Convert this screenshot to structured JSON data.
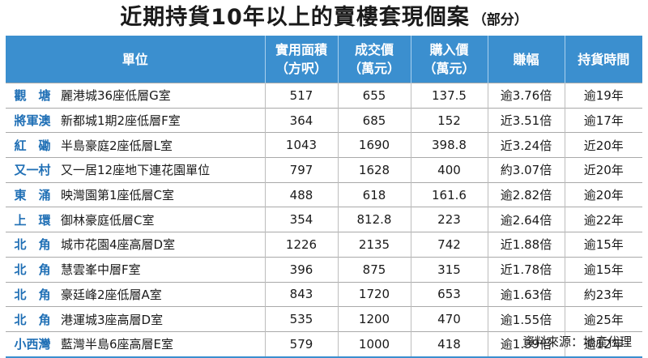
{
  "title": {
    "main": "近期持貨10年以上的賣樓套現個案",
    "sub": "（部分）"
  },
  "header": {
    "unit": "單位",
    "area": [
      "實用面積",
      "（方呎）"
    ],
    "deal": [
      "成交價",
      "（萬元）"
    ],
    "buy": [
      "購入價",
      "（萬元）"
    ],
    "gain": "賺幅",
    "hold": "持貨時間"
  },
  "rows": [
    {
      "district": "觀　塘",
      "estate": "麗港城36座低層G室",
      "area": "517",
      "deal": "655",
      "buy": "137.5",
      "gain": "逾3.76倍",
      "hold": "逾19年"
    },
    {
      "district": "將軍澳",
      "estate": "新都城1期2座低層F室",
      "area": "364",
      "deal": "685",
      "buy": "152",
      "gain": "近3.51倍",
      "hold": "逾17年"
    },
    {
      "district": "紅　磡",
      "estate": "半島豪庭2座低層L室",
      "area": "1043",
      "deal": "1690",
      "buy": "398.8",
      "gain": "近3.24倍",
      "hold": "近20年"
    },
    {
      "district": "又一村",
      "estate": "又一居12座地下連花園單位",
      "area": "797",
      "deal": "1628",
      "buy": "400",
      "gain": "約3.07倍",
      "hold": "近20年"
    },
    {
      "district": "東　涌",
      "estate": "映灣園第1座低層C室",
      "area": "488",
      "deal": "618",
      "buy": "161.6",
      "gain": "逾2.82倍",
      "hold": "逾20年"
    },
    {
      "district": "上　環",
      "estate": "御林豪庭低層C室",
      "area": "354",
      "deal": "812.8",
      "buy": "223",
      "gain": "逾2.64倍",
      "hold": "逾22年"
    },
    {
      "district": "北　角",
      "estate": "城市花園4座高層D室",
      "area": "1226",
      "deal": "2135",
      "buy": "742",
      "gain": "近1.88倍",
      "hold": "逾15年"
    },
    {
      "district": "北　角",
      "estate": "慧雲峯中層F室",
      "area": "396",
      "deal": "875",
      "buy": "315",
      "gain": "近1.78倍",
      "hold": "逾15年"
    },
    {
      "district": "北　角",
      "estate": "豪廷峰2座低層A室",
      "area": "843",
      "deal": "1720",
      "buy": "653",
      "gain": "逾1.63倍",
      "hold": "約23年"
    },
    {
      "district": "北　角",
      "estate": "港運城3座高層D室",
      "area": "535",
      "deal": "1200",
      "buy": "470",
      "gain": "逾1.55倍",
      "hold": "逾25年"
    },
    {
      "district": "小西灣",
      "estate": "藍灣半島6座高層E室",
      "area": "579",
      "deal": "1000",
      "buy": "418",
      "gain": "逾1.39倍",
      "hold": "逾12年"
    }
  ],
  "source": "資料來源：地產代理",
  "colors": {
    "header_bg": "#3b8fcf",
    "district_text": "#1f6fb5"
  }
}
